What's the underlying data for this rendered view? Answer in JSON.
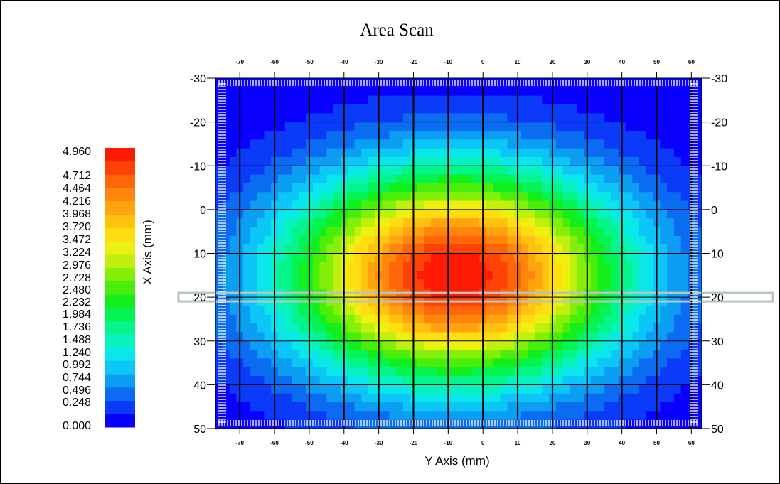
{
  "chart_data": {
    "type": "heatmap",
    "title": "Area Scan",
    "xlabel": "Y Axis (mm)",
    "ylabel": "X Axis (mm)",
    "x_ticks": [
      -70,
      -60,
      -50,
      -40,
      -30,
      -20,
      -10,
      0,
      10,
      20,
      30,
      40,
      50,
      60
    ],
    "y_ticks": [
      -30,
      -20,
      -10,
      0,
      10,
      20,
      30,
      40,
      50
    ],
    "xlim": [
      -77,
      63
    ],
    "ylim": [
      -30,
      50
    ],
    "grid": true,
    "value_range": [
      0.0,
      4.96
    ],
    "peak": {
      "y_axis_mm": -8,
      "x_axis_mm": 15,
      "value": 4.96
    },
    "spread_mm": {
      "y_axis": 48,
      "x_axis": 24
    },
    "highlighted_row_x_mm": 20,
    "colorbar": {
      "labels": [
        "4.960",
        "4.712",
        "4.464",
        "4.216",
        "3.968",
        "3.720",
        "3.472",
        "3.224",
        "2.976",
        "2.728",
        "2.480",
        "2.232",
        "1.984",
        "1.736",
        "1.488",
        "1.240",
        "0.992",
        "0.744",
        "0.496",
        "0.248",
        "0.000"
      ],
      "colors": [
        "#0a00ff",
        "#0b3af8",
        "#0b6cf2",
        "#0b9ef2",
        "#0bc6f6",
        "#09e7ea",
        "#06f3c0",
        "#05f58a",
        "#06f451",
        "#13ee1d",
        "#4bee08",
        "#84f00a",
        "#c0f10e",
        "#eef10f",
        "#ffdd10",
        "#ffc20f",
        "#ffa40e",
        "#ff850c",
        "#ff6509",
        "#ff4306",
        "#ff1a03"
      ]
    }
  }
}
